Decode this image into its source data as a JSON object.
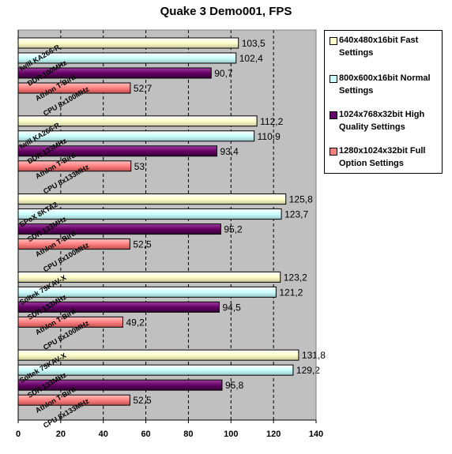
{
  "chart_data": {
    "type": "bar",
    "orientation": "horizontal",
    "title": "Quake 3 Demo001, FPS",
    "xlim": [
      0,
      140
    ],
    "xticks": [
      0,
      20,
      40,
      60,
      80,
      100,
      120,
      140
    ],
    "grid": true,
    "legend_position": "right",
    "categories": [
      [
        "Iwill KA266-R",
        "DDR 100MHz",
        "Athlon T-Bird",
        "CPU 8x100MHz"
      ],
      [
        "Iwill KA266-R",
        "DDR 133MHz",
        "Athlon T-Bird",
        "CPU 8x133MHz"
      ],
      [
        "EPoX 8KTA2",
        "SDR 133MHz",
        "Athlon T-Bird",
        "CPU 8x100MHz"
      ],
      [
        "Soltek 75KAV-X",
        "SDR 133MHz",
        "Athlon T-Bird",
        "CPU 8x100MHz"
      ],
      [
        "Soltek 75KAV-X",
        "SDR 133MHz",
        "Athlon T-Bird",
        "CPU 8x133MHz"
      ]
    ],
    "series": [
      {
        "name": "640x480x16bit Fast Settings",
        "color": "#ffffcc",
        "values": [
          103.5,
          112.2,
          125.8,
          123.2,
          131.8
        ],
        "labels": [
          "103,5",
          "112,2",
          "125,8",
          "123,2",
          "131,8"
        ]
      },
      {
        "name": "800x600x16bit Normal Settings",
        "color": "#ccffff",
        "values": [
          102.4,
          110.9,
          123.7,
          121.2,
          129.2
        ],
        "labels": [
          "102,4",
          "110,9",
          "123,7",
          "121,2",
          "129,2"
        ]
      },
      {
        "name": "1024x768x32bit High Quality Settings",
        "color": "#660066",
        "values": [
          90.7,
          93.4,
          95.2,
          94.5,
          95.8
        ],
        "labels": [
          "90,7",
          "93,4",
          "95,2",
          "94,5",
          "95,8"
        ]
      },
      {
        "name": "1280x1024x32bit Full Option Settings",
        "color": "#ff8080",
        "values": [
          52.7,
          53,
          52.5,
          49.2,
          52.5
        ],
        "labels": [
          "52,7",
          "53",
          "52,5",
          "49,2",
          "52,5"
        ]
      }
    ],
    "plot_background": "#c0c0c0"
  }
}
